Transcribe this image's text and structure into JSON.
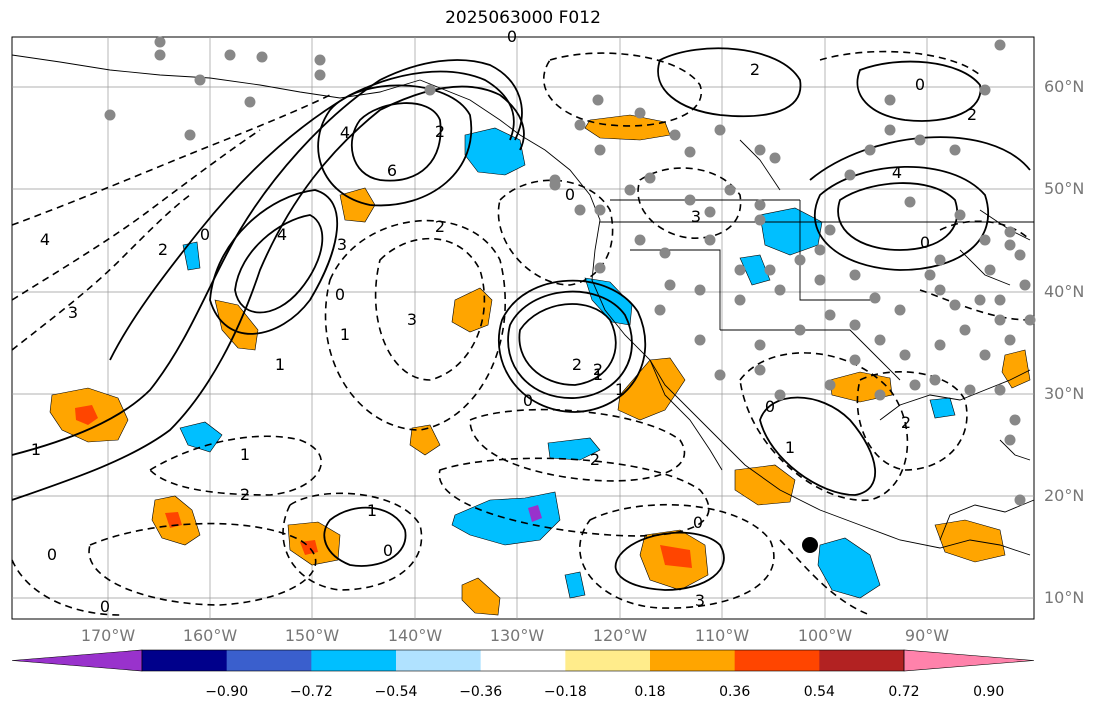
{
  "title": "2025063000 F012",
  "lat_labels": [
    "60°N",
    "50°N",
    "40°N",
    "30°N",
    "20°N",
    "10°N"
  ],
  "lon_labels": [
    "170°W",
    "160°W",
    "150°W",
    "140°W",
    "130°W",
    "120°W",
    "110°W",
    "100°W",
    "90°W"
  ],
  "colorbar": {
    "colors": [
      "#9932CC",
      "#00008B",
      "#3A5FCD",
      "#00BFFF",
      "#B0E2FF",
      "#FFFFFF",
      "#FFEC8B",
      "#FFA500",
      "#FF4500",
      "#B22222",
      "#FF82AB"
    ],
    "labels": [
      "−0.90",
      "−0.72",
      "−0.54",
      "−0.36",
      "−0.18",
      "0.18",
      "0.36",
      "0.54",
      "0.72",
      "0.90"
    ]
  },
  "contour_labels": [
    "4",
    "6",
    "4",
    "2",
    "3",
    "2",
    "0",
    "3",
    "3",
    "4",
    "2",
    "1",
    "0",
    "1",
    "2",
    "0",
    "1",
    "0",
    "0",
    "3",
    "2",
    "1",
    "0",
    "2",
    "2",
    "1",
    "0",
    "1",
    "1",
    "1",
    "0",
    "2",
    "4",
    "2",
    "3",
    "0",
    "0",
    "2",
    "0",
    "0"
  ],
  "colors": {
    "dot": "#888888",
    "grid": "#999999",
    "contour": "#000000"
  }
}
